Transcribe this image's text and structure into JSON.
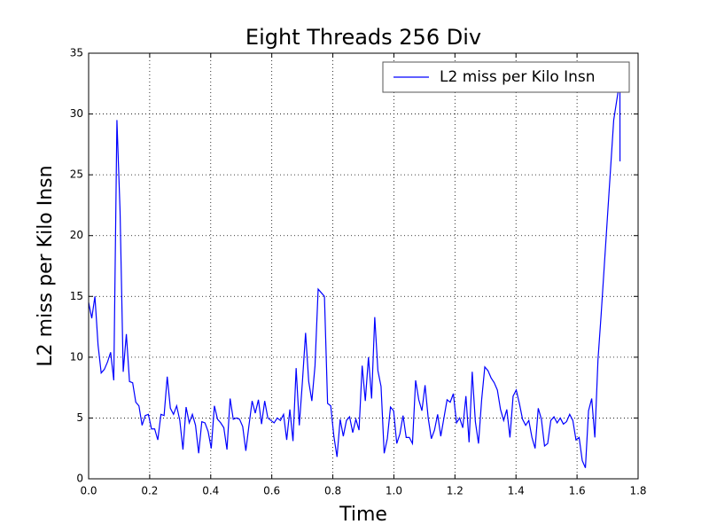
{
  "chart_data": {
    "type": "line",
    "title": "Eight Threads 256 Div",
    "xlabel": "Time",
    "ylabel": "L2 miss per Kilo Insn",
    "x": [
      0,
      0.0103,
      0.0206,
      0.0309,
      0.0412,
      0.0515,
      0.0618,
      0.0721,
      0.0824,
      0.0927,
      0.103,
      0.1133,
      0.1236,
      0.1339,
      0.1442,
      0.1545,
      0.1648,
      0.1751,
      0.1854,
      0.1957,
      0.206,
      0.2163,
      0.2266,
      0.2369,
      0.2472,
      0.2575,
      0.2678,
      0.2781,
      0.2884,
      0.2987,
      0.309,
      0.3193,
      0.3296,
      0.3399,
      0.3502,
      0.3605,
      0.3708,
      0.3811,
      0.3914,
      0.4017,
      0.412,
      0.4223,
      0.4326,
      0.4429,
      0.4532,
      0.4635,
      0.4738,
      0.4841,
      0.4944,
      0.5047,
      0.515,
      0.5253,
      0.5356,
      0.5459,
      0.5562,
      0.5665,
      0.5768,
      0.5871,
      0.5974,
      0.6077,
      0.618,
      0.6283,
      0.6386,
      0.6489,
      0.6592,
      0.6695,
      0.6798,
      0.6901,
      0.7004,
      0.7107,
      0.721,
      0.7313,
      0.7416,
      0.7519,
      0.7622,
      0.7725,
      0.7828,
      0.7931,
      0.8034,
      0.8137,
      0.824,
      0.8343,
      0.8446,
      0.8549,
      0.8652,
      0.8755,
      0.8858,
      0.8961,
      0.9064,
      0.9167,
      0.927,
      0.9373,
      0.9476,
      0.9579,
      0.9682,
      0.9785,
      0.9888,
      0.9991,
      1.0094,
      1.0197,
      1.03,
      1.0403,
      1.0506,
      1.0609,
      1.0712,
      1.0815,
      1.0918,
      1.1021,
      1.1124,
      1.1227,
      1.133,
      1.1433,
      1.1536,
      1.1639,
      1.1742,
      1.1845,
      1.1948,
      1.2051,
      1.2154,
      1.2257,
      1.236,
      1.2463,
      1.2566,
      1.2669,
      1.2772,
      1.2875,
      1.2978,
      1.3081,
      1.3184,
      1.3287,
      1.339,
      1.3493,
      1.3596,
      1.3699,
      1.3802,
      1.3905,
      1.4008,
      1.4111,
      1.4214,
      1.4317,
      1.442,
      1.4523,
      1.4626,
      1.4729,
      1.4832,
      1.4935,
      1.5038,
      1.5141,
      1.5244,
      1.5347,
      1.545,
      1.5553,
      1.5656,
      1.5759,
      1.5862,
      1.5965,
      1.6068,
      1.6171,
      1.6274,
      1.6377,
      1.648,
      1.6583,
      1.6686,
      1.6789,
      1.6892,
      1.6995,
      1.7098,
      1.7201,
      1.7404,
      1.7407
    ],
    "series": [
      {
        "name": "L2 miss per Kilo Insn",
        "color": "#0000ff",
        "values": [
          14.5,
          13.2,
          15.0,
          11.0,
          8.7,
          9.0,
          9.6,
          10.4,
          8.1,
          29.5,
          22.0,
          8.8,
          11.9,
          8.0,
          7.9,
          6.3,
          6.0,
          4.4,
          5.2,
          5.3,
          4.1,
          4.1,
          3.2,
          5.3,
          5.2,
          8.4,
          5.8,
          5.3,
          6.0,
          4.8,
          2.4,
          5.9,
          4.6,
          5.3,
          4.4,
          2.1,
          4.7,
          4.6,
          3.9,
          2.5,
          6.0,
          4.9,
          4.6,
          4.2,
          2.4,
          6.6,
          4.9,
          5.0,
          4.9,
          4.3,
          2.3,
          4.4,
          6.4,
          5.4,
          6.5,
          4.5,
          6.4,
          5.0,
          4.8,
          4.6,
          5.0,
          4.8,
          5.3,
          3.2,
          5.7,
          3.1,
          9.1,
          4.4,
          8.0,
          12.0,
          8.0,
          6.4,
          9.3,
          15.6,
          15.3,
          15.0,
          6.2,
          6.0,
          3.5,
          1.8,
          4.9,
          3.5,
          4.8,
          5.1,
          3.8,
          4.9,
          4.0,
          9.3,
          6.4,
          10.0,
          6.6,
          13.3,
          8.9,
          7.6,
          2.1,
          3.3,
          5.9,
          5.6,
          2.9,
          3.7,
          5.2,
          3.4,
          3.4,
          2.9,
          8.1,
          6.5,
          5.6,
          7.7,
          5.0,
          3.3,
          4.0,
          5.3,
          3.5,
          5.0,
          6.5,
          6.3,
          7.0,
          4.6,
          5.0,
          4.2,
          6.8,
          3.0,
          8.8,
          4.7,
          2.9,
          6.5,
          9.2,
          8.9,
          8.3,
          7.9,
          7.3,
          5.7,
          4.8,
          5.7,
          3.4,
          6.8,
          7.3,
          6.2,
          4.9,
          4.4,
          4.8,
          3.4,
          2.5,
          5.8,
          4.9,
          2.7,
          2.9,
          4.8,
          5.1,
          4.6,
          5.0,
          4.5,
          4.7,
          5.3,
          4.8,
          3.2,
          3.4,
          1.5,
          0.9,
          5.6,
          6.6,
          3.4,
          9.8,
          13.5,
          17.5,
          21.5,
          25.5,
          29.5,
          32.8,
          26.1
        ]
      }
    ],
    "xlim": [
      0,
      1.8
    ],
    "ylim": [
      0,
      35
    ],
    "xticks": [
      {
        "value": 0,
        "label": "0.0"
      },
      0.2,
      0.4,
      0.6,
      0.8,
      {
        "value": 1,
        "label": "1.0"
      },
      1.2,
      1.4,
      1.6,
      1.8
    ],
    "yticks": [
      0,
      5,
      10,
      15,
      20,
      25,
      30,
      35
    ],
    "grid": true,
    "legend": "upper-right"
  }
}
